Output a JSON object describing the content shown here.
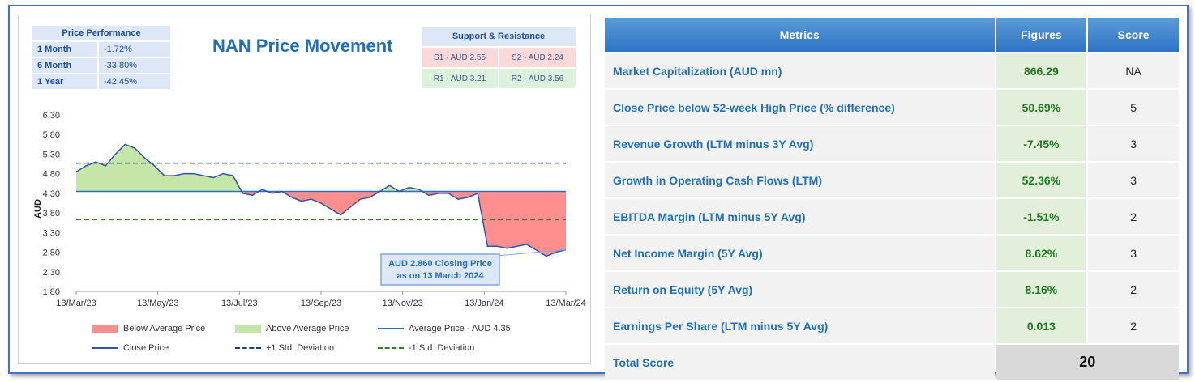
{
  "performance": {
    "title": "Price Performance",
    "rows": [
      {
        "label": "1 Month",
        "value": "-1.72%"
      },
      {
        "label": "6 Month",
        "value": "-33.80%"
      },
      {
        "label": "1 Year",
        "value": "-42.45%"
      }
    ]
  },
  "support_resistance": {
    "title": "Support & Resistance",
    "s1": "S1 - AUD 2.55",
    "s2": "S2 - AUD 2.24",
    "r1": "R1 - AUD 3.21",
    "r2": "R2 - AUD 3.56"
  },
  "chart_data": {
    "type": "line",
    "title": "NAN Price Movement",
    "ylabel": "AUD",
    "xlabel": "",
    "ylim": [
      1.8,
      6.3
    ],
    "yticks": [
      "6.30",
      "5.80",
      "5.30",
      "4.80",
      "4.30",
      "3.80",
      "3.30",
      "2.80",
      "2.30",
      "1.80"
    ],
    "xticks": [
      "13/Mar/23",
      "13/May/23",
      "13/Jul/23",
      "13/Sep/23",
      "13/Nov/23",
      "13/Jan/24",
      "13/Mar/24"
    ],
    "average": 4.35,
    "plus1sd": 5.07,
    "minus1sd": 3.63,
    "series": [
      {
        "name": "Close Price",
        "x": [
          0,
          2,
          4,
          6,
          8,
          10,
          12,
          14,
          16,
          18,
          20,
          22,
          24,
          26,
          28,
          30,
          32,
          34,
          36,
          38,
          40,
          42,
          44,
          46,
          48,
          50,
          52,
          54,
          56,
          58,
          60,
          62,
          64,
          66,
          68,
          70,
          72,
          74,
          76,
          78,
          80,
          82,
          84,
          86,
          88,
          90,
          92,
          94,
          96,
          98,
          100
        ],
        "values": [
          4.85,
          5.0,
          5.1,
          5.0,
          5.3,
          5.55,
          5.45,
          5.2,
          5.0,
          4.75,
          4.75,
          4.8,
          4.8,
          4.75,
          4.7,
          4.8,
          4.75,
          4.3,
          4.25,
          4.4,
          4.3,
          4.35,
          4.2,
          4.1,
          4.15,
          4.05,
          3.9,
          3.75,
          3.95,
          4.15,
          4.2,
          4.35,
          4.5,
          4.35,
          4.45,
          4.4,
          4.25,
          4.3,
          4.3,
          4.15,
          4.2,
          4.3,
          2.95,
          2.95,
          2.9,
          2.95,
          3.0,
          2.85,
          2.7,
          2.8,
          2.86
        ]
      }
    ],
    "annotation": "AUD 2.860 Closing Price as on 13 March 2024",
    "legend": {
      "below": "Below Average Price",
      "above": "Above Average Price",
      "average": "Average Price - AUD 4.35",
      "close": "Close Price",
      "plus1": "+1 Std. Deviation",
      "minus1": "-1 Std. Deviation"
    },
    "colors": {
      "below": "#ff8f8f",
      "above": "#c6e5a8",
      "close": "#2f54a8",
      "average": "#2e6fb5",
      "plus1": "#1f3f8f",
      "minus1": "#3d7a2a"
    }
  },
  "metrics": {
    "headers": {
      "metric": "Metrics",
      "figure": "Figures",
      "score": "Score"
    },
    "rows": [
      {
        "metric": "Market Capitalization (AUD mn)",
        "figure": "866.29",
        "score": "NA"
      },
      {
        "metric": "Close Price below 52-week High Price (% difference)",
        "figure": "50.69%",
        "score": "5"
      },
      {
        "metric": "Revenue Growth (LTM minus 3Y Avg)",
        "figure": "-7.45%",
        "score": "3"
      },
      {
        "metric": "Growth in Operating Cash Flows (LTM)",
        "figure": "52.36%",
        "score": "3"
      },
      {
        "metric": "EBITDA Margin (LTM minus 5Y Avg)",
        "figure": "-1.51%",
        "score": "2"
      },
      {
        "metric": "Net Income Margin (5Y Avg)",
        "figure": "8.62%",
        "score": "3"
      },
      {
        "metric": "Return on Equity (5Y Avg)",
        "figure": "8.16%",
        "score": "2"
      },
      {
        "metric": "Earnings Per Share (LTM minus 5Y Avg)",
        "figure": "0.013",
        "score": "2"
      }
    ],
    "total_label": "Total Score",
    "total_value": "20"
  }
}
